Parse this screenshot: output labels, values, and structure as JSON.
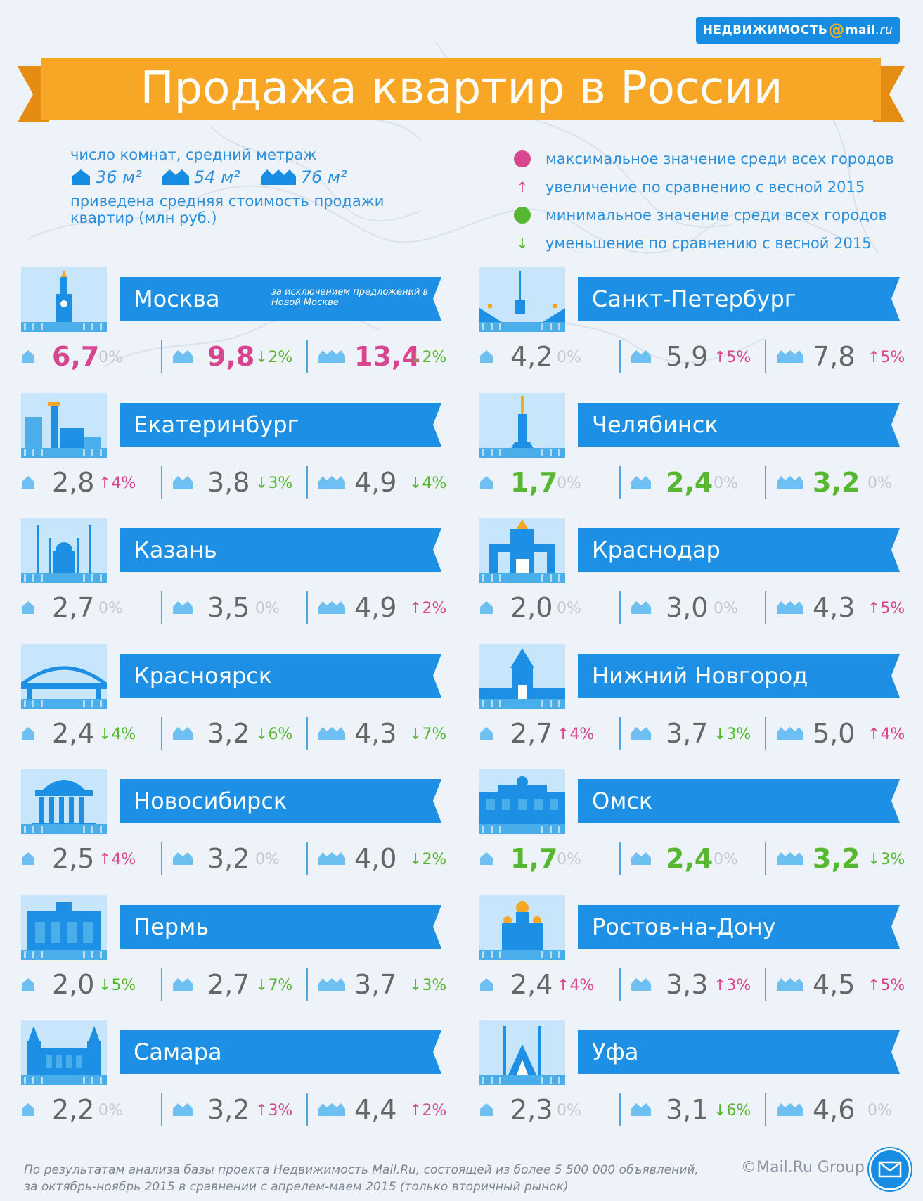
{
  "logo": {
    "pre": "НЕДВИЖИМОСТЬ",
    "at": "@",
    "brand": "mail",
    "tld": ".ru"
  },
  "title": "Продажа квартир в России",
  "legend": {
    "rooms_label": "число комнат, средний метраж",
    "sizes": [
      "36 м²",
      "54 м²",
      "76 м²"
    ],
    "price_note": "приведена средняя стоимость продажи квартир (млн руб.)",
    "items": [
      {
        "kind": "max",
        "text": "максимальное значение среди всех городов"
      },
      {
        "kind": "up",
        "text": "увеличение по сравнению с весной 2015"
      },
      {
        "kind": "min",
        "text": "минимальное значение среди всех городов"
      },
      {
        "kind": "down",
        "text": "уменьшение по сравнению с весной 2015"
      }
    ]
  },
  "colors": {
    "max": "#d8468f",
    "min": "#56b830",
    "accent": "#168de2",
    "banner": "#f7a626"
  },
  "cities": [
    {
      "name": "Москва",
      "note": "за исключением предложений в Новой Москве",
      "icon": "kremlin-tower-icon",
      "prices": [
        {
          "value": "6,7",
          "mark": "max",
          "change": "0%",
          "dir": "zero"
        },
        {
          "value": "9,8",
          "mark": "max",
          "change": "2%",
          "dir": "down"
        },
        {
          "value": "13,4",
          "mark": "max",
          "change": "2%",
          "dir": "down"
        }
      ]
    },
    {
      "name": "Санкт-Петербург",
      "note": "",
      "icon": "drawbridge-icon",
      "prices": [
        {
          "value": "4,2",
          "mark": "",
          "change": "0%",
          "dir": "zero"
        },
        {
          "value": "5,9",
          "mark": "",
          "change": "5%",
          "dir": "up"
        },
        {
          "value": "7,8",
          "mark": "",
          "change": "5%",
          "dir": "up"
        }
      ]
    },
    {
      "name": "Екатеринбург",
      "note": "",
      "icon": "city-towers-icon",
      "prices": [
        {
          "value": "2,8",
          "mark": "",
          "change": "4%",
          "dir": "up"
        },
        {
          "value": "3,8",
          "mark": "",
          "change": "3%",
          "dir": "down"
        },
        {
          "value": "4,9",
          "mark": "",
          "change": "4%",
          "dir": "down"
        }
      ]
    },
    {
      "name": "Челябинск",
      "note": "",
      "icon": "monument-icon",
      "prices": [
        {
          "value": "1,7",
          "mark": "min",
          "change": "0%",
          "dir": "zero"
        },
        {
          "value": "2,4",
          "mark": "min",
          "change": "0%",
          "dir": "zero"
        },
        {
          "value": "3,2",
          "mark": "min",
          "change": "0%",
          "dir": "zero"
        }
      ]
    },
    {
      "name": "Казань",
      "note": "",
      "icon": "mosque-icon",
      "prices": [
        {
          "value": "2,7",
          "mark": "",
          "change": "0%",
          "dir": "zero"
        },
        {
          "value": "3,5",
          "mark": "",
          "change": "0%",
          "dir": "zero"
        },
        {
          "value": "4,9",
          "mark": "",
          "change": "2%",
          "dir": "up"
        }
      ]
    },
    {
      "name": "Краснодар",
      "note": "",
      "icon": "arch-gate-icon",
      "prices": [
        {
          "value": "2,0",
          "mark": "",
          "change": "0%",
          "dir": "zero"
        },
        {
          "value": "3,0",
          "mark": "",
          "change": "0%",
          "dir": "zero"
        },
        {
          "value": "4,3",
          "mark": "",
          "change": "5%",
          "dir": "up"
        }
      ]
    },
    {
      "name": "Красноярск",
      "note": "",
      "icon": "bridge-icon",
      "prices": [
        {
          "value": "2,4",
          "mark": "",
          "change": "4%",
          "dir": "down"
        },
        {
          "value": "3,2",
          "mark": "",
          "change": "6%",
          "dir": "down"
        },
        {
          "value": "4,3",
          "mark": "",
          "change": "7%",
          "dir": "down"
        }
      ]
    },
    {
      "name": "Нижний Новгород",
      "note": "",
      "icon": "fortress-tower-icon",
      "prices": [
        {
          "value": "2,7",
          "mark": "",
          "change": "4%",
          "dir": "up"
        },
        {
          "value": "3,7",
          "mark": "",
          "change": "3%",
          "dir": "down"
        },
        {
          "value": "5,0",
          "mark": "",
          "change": "4%",
          "dir": "up"
        }
      ]
    },
    {
      "name": "Новосибирск",
      "note": "",
      "icon": "theatre-icon",
      "prices": [
        {
          "value": "2,5",
          "mark": "",
          "change": "4%",
          "dir": "up"
        },
        {
          "value": "3,2",
          "mark": "",
          "change": "0%",
          "dir": "zero"
        },
        {
          "value": "4,0",
          "mark": "",
          "change": "2%",
          "dir": "down"
        }
      ]
    },
    {
      "name": "Омск",
      "note": "",
      "icon": "palace-icon",
      "prices": [
        {
          "value": "1,7",
          "mark": "min",
          "change": "0%",
          "dir": "zero"
        },
        {
          "value": "2,4",
          "mark": "min",
          "change": "0%",
          "dir": "zero"
        },
        {
          "value": "3,2",
          "mark": "min",
          "change": "3%",
          "dir": "down"
        }
      ]
    },
    {
      "name": "Пермь",
      "note": "",
      "icon": "opera-house-icon",
      "prices": [
        {
          "value": "2,0",
          "mark": "",
          "change": "5%",
          "dir": "down"
        },
        {
          "value": "2,7",
          "mark": "",
          "change": "7%",
          "dir": "down"
        },
        {
          "value": "3,7",
          "mark": "",
          "change": "3%",
          "dir": "down"
        }
      ]
    },
    {
      "name": "Ростов-на-Дону",
      "note": "",
      "icon": "cathedral-icon",
      "prices": [
        {
          "value": "2,4",
          "mark": "",
          "change": "4%",
          "dir": "up"
        },
        {
          "value": "3,3",
          "mark": "",
          "change": "3%",
          "dir": "up"
        },
        {
          "value": "4,5",
          "mark": "",
          "change": "5%",
          "dir": "up"
        }
      ]
    },
    {
      "name": "Самара",
      "note": "",
      "icon": "station-icon",
      "prices": [
        {
          "value": "2,2",
          "mark": "",
          "change": "0%",
          "dir": "zero"
        },
        {
          "value": "3,2",
          "mark": "",
          "change": "3%",
          "dir": "up"
        },
        {
          "value": "4,4",
          "mark": "",
          "change": "2%",
          "dir": "up"
        }
      ]
    },
    {
      "name": "Уфа",
      "note": "",
      "icon": "minaret-icon",
      "prices": [
        {
          "value": "2,3",
          "mark": "",
          "change": "0%",
          "dir": "zero"
        },
        {
          "value": "3,1",
          "mark": "",
          "change": "6%",
          "dir": "down"
        },
        {
          "value": "4,6",
          "mark": "",
          "change": "0%",
          "dir": "zero"
        }
      ]
    }
  ],
  "footer": "По результатам анализа базы проекта Недвижимость Mail.Ru, состоящей из более 5 500 000 объявлений, за октябрь-ноябрь 2015 в сравнении с апрелем-маем 2015 (только вторичный рынок)",
  "copyright": "©Mail.Ru Group"
}
